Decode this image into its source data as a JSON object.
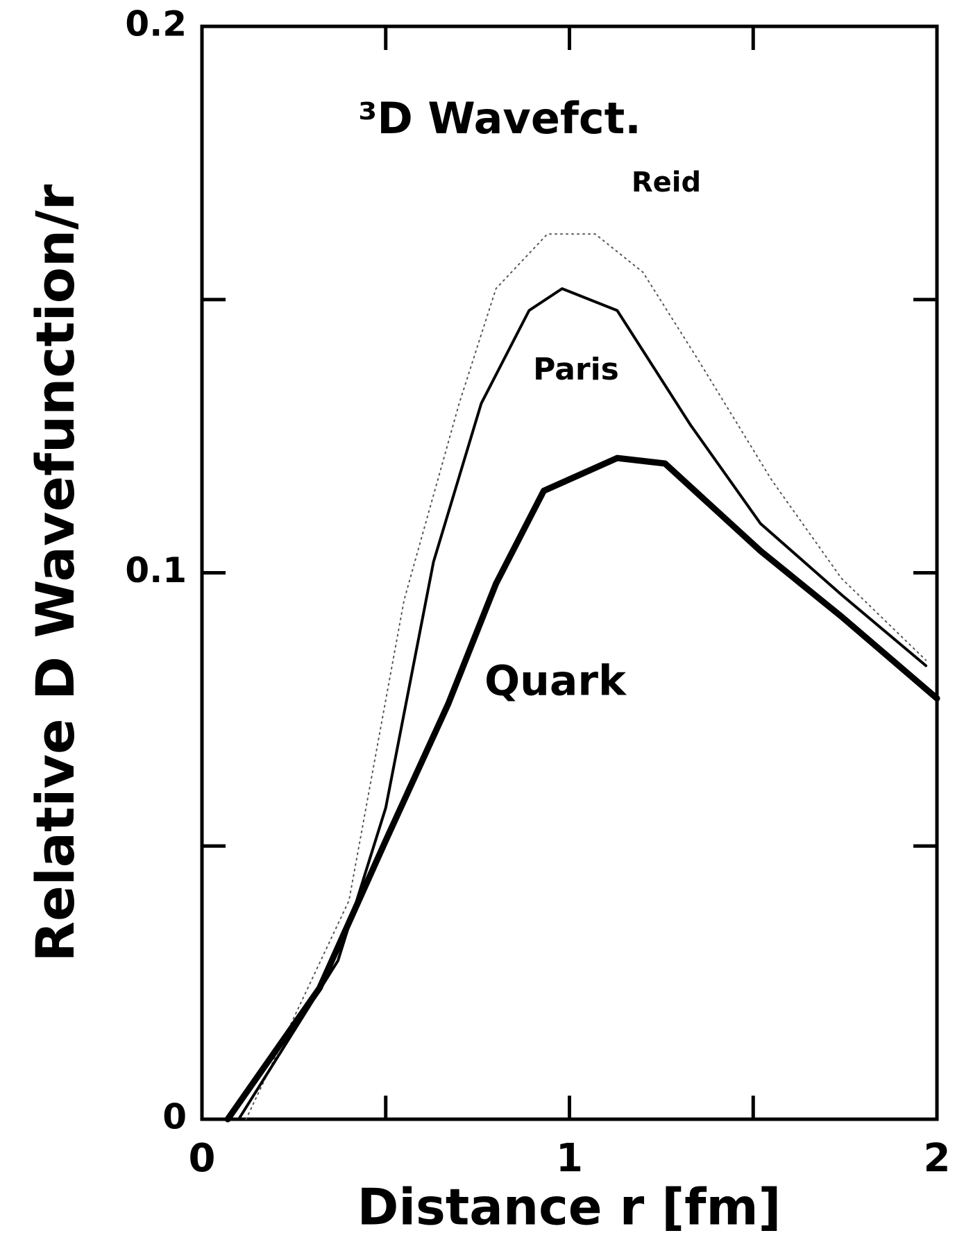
{
  "chart_data": {
    "type": "line",
    "title": "³D Wavefct.",
    "x_label": "Distance r [fm]",
    "y_label": "Relative D Wavefunction/r",
    "xlim": [
      0,
      2
    ],
    "ylim": [
      0,
      0.2
    ],
    "xticks": [
      0,
      1,
      2
    ],
    "yticks": [
      0,
      0.1,
      0.2
    ],
    "xminor_ticks": [
      0.5,
      1.5
    ],
    "yminor_ticks": [
      0.05,
      0.15
    ],
    "series": [
      {
        "name": "Reid",
        "color": "#555555",
        "style": "dotted",
        "width": 2,
        "x": [
          0.12,
          0.4,
          0.55,
          0.7,
          0.8,
          0.94,
          1.07,
          1.2,
          1.35,
          1.55,
          1.74,
          1.97
        ],
        "values": [
          0,
          0.04,
          0.095,
          0.131,
          0.152,
          0.162,
          0.162,
          0.155,
          0.139,
          0.117,
          0.099,
          0.084
        ]
      },
      {
        "name": "Paris",
        "color": "#000000",
        "style": "solid",
        "width": 4,
        "x": [
          0.1,
          0.37,
          0.5,
          0.63,
          0.76,
          0.89,
          0.98,
          1.13,
          1.33,
          1.52,
          1.74,
          1.97
        ],
        "values": [
          0,
          0.029,
          0.057,
          0.102,
          0.131,
          0.148,
          0.152,
          0.148,
          0.127,
          0.109,
          0.096,
          0.083
        ]
      },
      {
        "name": "Quark",
        "color": "#000000",
        "style": "solid",
        "width": 9,
        "x": [
          0.07,
          0.32,
          0.5,
          0.67,
          0.8,
          0.93,
          1.13,
          1.26,
          1.52,
          1.74,
          2.0
        ],
        "values": [
          0,
          0.024,
          0.051,
          0.076,
          0.098,
          0.115,
          0.121,
          0.12,
          0.104,
          0.092,
          0.077
        ]
      }
    ]
  }
}
